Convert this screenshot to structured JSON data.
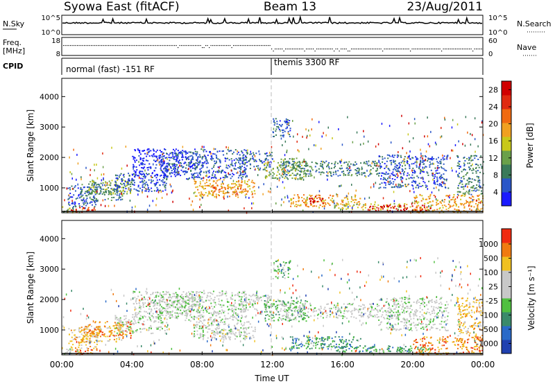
{
  "header": {
    "station": "Syowa East (fitACF)",
    "beam": "Beam 13",
    "date": "23/Aug/2011"
  },
  "side_labels": {
    "nsky": "N.Sky",
    "nsearch": "N.Search",
    "freq_line1": "Freq.",
    "freq_line2": "[MHz]",
    "nave": "Nave",
    "cpid": "CPID",
    "nsky_ticks": [
      "10^5",
      "10^0"
    ],
    "nsearch_ticks": [
      "10^5",
      "10^0"
    ],
    "freq_ticks": [
      "18",
      "8"
    ],
    "nave_ticks": [
      "60",
      "0"
    ]
  },
  "cpid_modes": [
    {
      "label": "normal (fast) -151 RF",
      "start_hour": 0
    },
    {
      "label": "themis 3300 RF",
      "start_hour": 12
    }
  ],
  "chart_data": [
    {
      "type": "heatmap",
      "name": "power",
      "ylabel": "Slant Range [km]",
      "xlabel": "Time UT",
      "ylim": [
        180,
        4600
      ],
      "xlim_hours": [
        0,
        24
      ],
      "yticks": [
        1000,
        2000,
        3000,
        4000
      ],
      "xticks": [
        "00:00",
        "04:00",
        "08:00",
        "12:00",
        "16:00",
        "20:00",
        "00:00"
      ],
      "colorbar": {
        "label": "Power [dB]",
        "ticks": [
          "4",
          "8",
          "12",
          "16",
          "20",
          "24",
          "28"
        ],
        "colors": [
          "#1a1aff",
          "#2a56c8",
          "#3a7a5a",
          "#6aa04a",
          "#c8c81a",
          "#f0a020",
          "#f06a10",
          "#e02a10",
          "#d00000"
        ]
      }
    },
    {
      "type": "heatmap",
      "name": "velocity",
      "ylabel": "Slant Range [km]",
      "xlabel": "Time UT",
      "ylim": [
        180,
        4600
      ],
      "xlim_hours": [
        0,
        24
      ],
      "yticks": [
        1000,
        2000,
        3000,
        4000
      ],
      "xticks": [
        "00:00",
        "04:00",
        "08:00",
        "12:00",
        "16:00",
        "20:00",
        "00:00"
      ],
      "colorbar": {
        "label": "Velocity [m s⁻¹]",
        "ticks": [
          "1000",
          "500",
          "100",
          "25",
          "-25",
          "-100",
          "-500",
          "-1000"
        ],
        "colors": [
          "#2040b0",
          "#2a6ac8",
          "#3a8a6a",
          "#50c040",
          "#c8c8c8",
          "#c8c8c8",
          "#f0c020",
          "#f07a10",
          "#f02a10"
        ]
      }
    }
  ],
  "echo_regions": [
    {
      "t0": 0.0,
      "t1": 1.0,
      "r0": 200,
      "r1": 400,
      "pwr": 3,
      "vel": 4
    },
    {
      "t0": 0.5,
      "t1": 2.0,
      "r0": 220,
      "r1": 380,
      "pwr": 7,
      "vel": 7
    },
    {
      "t0": 0.3,
      "t1": 2.0,
      "r0": 400,
      "r1": 1100,
      "pwr": 1,
      "vel": 6
    },
    {
      "t0": 1.0,
      "t1": 3.5,
      "r0": 600,
      "r1": 1200,
      "pwr": 2,
      "vel": 6
    },
    {
      "t0": 1.5,
      "t1": 4.0,
      "r0": 800,
      "r1": 1300,
      "pwr": 3,
      "vel": 7
    },
    {
      "t0": 3.0,
      "t1": 6.0,
      "r0": 900,
      "r1": 1500,
      "pwr": 1,
      "vel": 4
    },
    {
      "t0": 4.0,
      "t1": 7.0,
      "r0": 1400,
      "r1": 2300,
      "pwr": 0,
      "vel": 4
    },
    {
      "t0": 5.5,
      "t1": 8.0,
      "r0": 1500,
      "r1": 2200,
      "pwr": 1,
      "vel": 4
    },
    {
      "t0": 7.0,
      "t1": 10.5,
      "r0": 1300,
      "r1": 2300,
      "pwr": 1,
      "vel": 4
    },
    {
      "t0": 7.5,
      "t1": 11.0,
      "r0": 700,
      "r1": 1300,
      "pwr": 5,
      "vel": 4
    },
    {
      "t0": 8.5,
      "t1": 10.5,
      "r0": 800,
      "r1": 1100,
      "pwr": 6,
      "vel": 5
    },
    {
      "t0": 10.0,
      "t1": 12.0,
      "r0": 1600,
      "r1": 2200,
      "pwr": 1,
      "vel": 4
    },
    {
      "t0": 11.5,
      "t1": 14.0,
      "r0": 1300,
      "r1": 2000,
      "pwr": 3,
      "vel": 3
    },
    {
      "t0": 12.0,
      "t1": 13.0,
      "r0": 2700,
      "r1": 3300,
      "pwr": 1,
      "vel": 3
    },
    {
      "t0": 12.5,
      "t1": 18.0,
      "r0": 1400,
      "r1": 1900,
      "pwr": 2,
      "vel": 4
    },
    {
      "t0": 13.0,
      "t1": 17.0,
      "r0": 400,
      "r1": 800,
      "pwr": 5,
      "vel": 2
    },
    {
      "t0": 14.0,
      "t1": 15.0,
      "r0": 500,
      "r1": 750,
      "pwr": 8,
      "vel": 3
    },
    {
      "t0": 15.5,
      "t1": 20.0,
      "r0": 300,
      "r1": 500,
      "pwr": 4,
      "vel": 2
    },
    {
      "t0": 17.5,
      "t1": 21.0,
      "r0": 250,
      "r1": 450,
      "pwr": 8,
      "vel": 3
    },
    {
      "t0": 18.0,
      "t1": 22.0,
      "r0": 1000,
      "r1": 2100,
      "pwr": 1,
      "vel": 4
    },
    {
      "t0": 20.0,
      "t1": 24.0,
      "r0": 200,
      "r1": 800,
      "pwr": 5,
      "vel": 7
    },
    {
      "t0": 22.5,
      "t1": 24.0,
      "r0": 800,
      "r1": 2100,
      "pwr": 2,
      "vel": 6
    }
  ]
}
